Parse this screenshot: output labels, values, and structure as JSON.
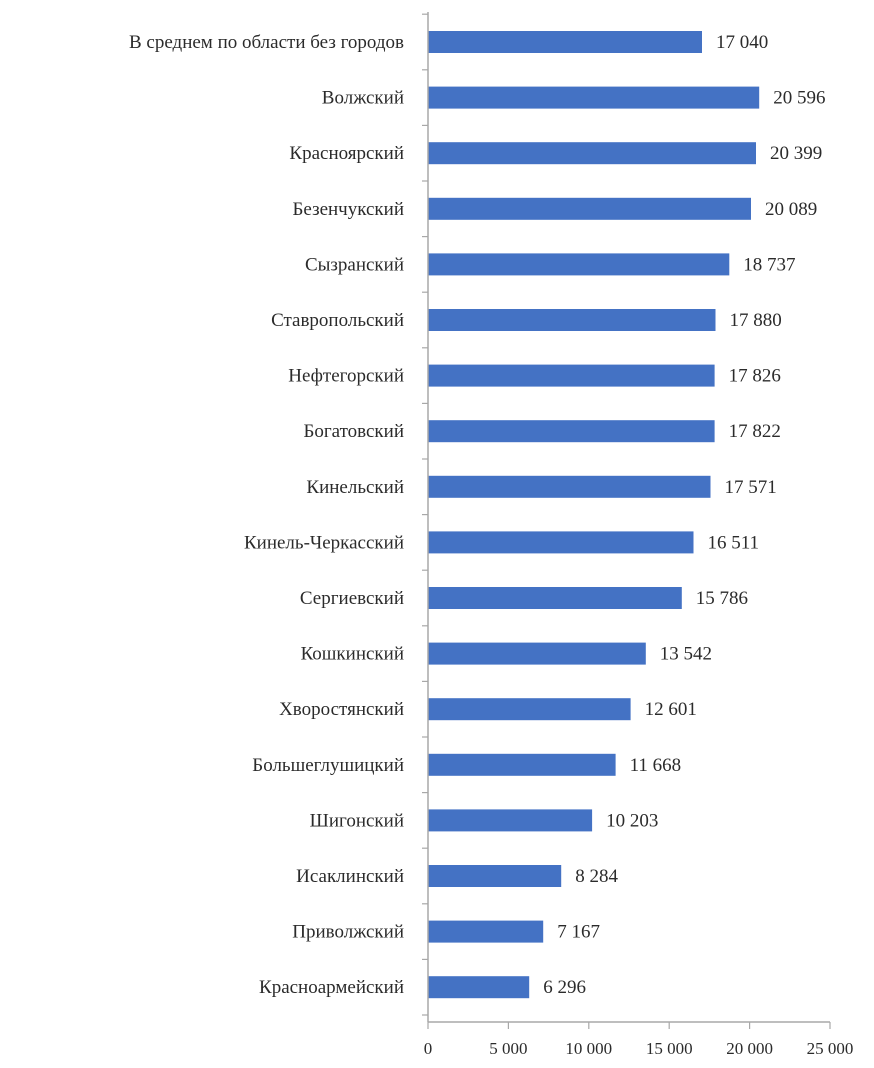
{
  "chart_data": {
    "type": "bar",
    "orientation": "horizontal",
    "categories": [
      "В среднем по области без городов",
      "Волжский",
      "Красноярский",
      "Безенчукский",
      "Сызранский",
      "Ставропольский",
      "Нефтегорский",
      "Богатовский",
      "Кинельский",
      "Кинель-Черкасский",
      "Сергиевский",
      "Кошкинский",
      "Хворостянский",
      "Большеглушицкий",
      "Шигонский",
      "Исаклинский",
      "Приволжский",
      "Красноармейский"
    ],
    "values": [
      17040,
      20596,
      20399,
      20089,
      18737,
      17880,
      17826,
      17822,
      17571,
      16511,
      15786,
      13542,
      12601,
      11668,
      10203,
      8284,
      7167,
      6296
    ],
    "value_labels": [
      "17 040",
      "20 596",
      "20 399",
      "20 089",
      "18 737",
      "17 880",
      "17 826",
      "17 822",
      "17 571",
      "16 511",
      "15 786",
      "13 542",
      "12 601",
      "11 668",
      "10 203",
      "8 284",
      "7 167",
      "6 296"
    ],
    "x_ticks": [
      0,
      5000,
      10000,
      15000,
      20000,
      25000
    ],
    "x_tick_labels": [
      "0",
      "5 000",
      "10 000",
      "15 000",
      "20 000",
      "25 000"
    ],
    "xlim": [
      0,
      25000
    ],
    "title": "",
    "xlabel": "",
    "ylabel": "",
    "grid": false,
    "legend": "none",
    "bar_color": "#4472C4",
    "axis_color": "#a8a8a8"
  }
}
